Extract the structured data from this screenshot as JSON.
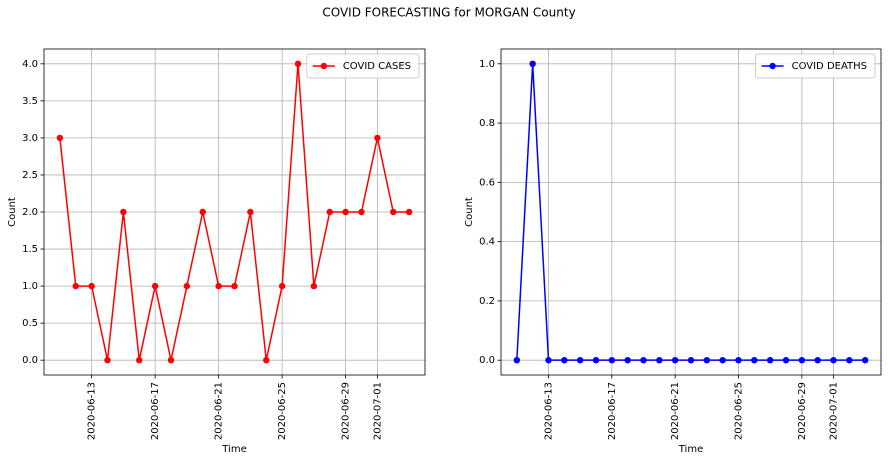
{
  "title": "COVID FORECASTING for MORGAN County",
  "chart_data": [
    {
      "type": "line",
      "xlabel": "Time",
      "ylabel": "Count",
      "x": [
        "2020-06-11",
        "2020-06-12",
        "2020-06-13",
        "2020-06-14",
        "2020-06-15",
        "2020-06-16",
        "2020-06-17",
        "2020-06-18",
        "2020-06-19",
        "2020-06-20",
        "2020-06-21",
        "2020-06-22",
        "2020-06-23",
        "2020-06-24",
        "2020-06-25",
        "2020-06-26",
        "2020-06-27",
        "2020-06-28",
        "2020-06-29",
        "2020-06-30",
        "2020-07-01",
        "2020-07-02",
        "2020-07-03"
      ],
      "series": [
        {
          "name": "COVID CASES",
          "color": "#ff0000",
          "values": [
            3,
            1,
            1,
            0,
            2,
            0,
            1,
            0,
            1,
            2,
            1,
            1,
            2,
            0,
            1,
            4,
            1,
            2,
            2,
            2,
            3,
            2,
            2
          ]
        }
      ],
      "xlim": [
        "2020-06-10",
        "2020-07-04"
      ],
      "xticks": [
        "2020-06-13",
        "2020-06-17",
        "2020-06-21",
        "2020-06-25",
        "2020-06-29",
        "2020-07-01"
      ],
      "ylim": [
        -0.2,
        4.2
      ],
      "yticks": [
        {
          "value": 0,
          "label": "0.0"
        },
        {
          "value": 0.5,
          "label": "0.5"
        },
        {
          "value": 1,
          "label": "1.0"
        },
        {
          "value": 1.5,
          "label": "1.5"
        },
        {
          "value": 2,
          "label": "2.0"
        },
        {
          "value": 2.5,
          "label": "2.5"
        },
        {
          "value": 3,
          "label": "3.0"
        },
        {
          "value": 3.5,
          "label": "3.5"
        },
        {
          "value": 4,
          "label": "4.0"
        }
      ],
      "grid": true,
      "legend": "upper right"
    },
    {
      "type": "line",
      "xlabel": "Time",
      "ylabel": "Count",
      "x": [
        "2020-06-11",
        "2020-06-12",
        "2020-06-13",
        "2020-06-14",
        "2020-06-15",
        "2020-06-16",
        "2020-06-17",
        "2020-06-18",
        "2020-06-19",
        "2020-06-20",
        "2020-06-21",
        "2020-06-22",
        "2020-06-23",
        "2020-06-24",
        "2020-06-25",
        "2020-06-26",
        "2020-06-27",
        "2020-06-28",
        "2020-06-29",
        "2020-06-30",
        "2020-07-01",
        "2020-07-02",
        "2020-07-03"
      ],
      "series": [
        {
          "name": "COVID DEATHS",
          "color": "#0000ff",
          "values": [
            0,
            1,
            0,
            0,
            0,
            0,
            0,
            0,
            0,
            0,
            0,
            0,
            0,
            0,
            0,
            0,
            0,
            0,
            0,
            0,
            0,
            0,
            0
          ]
        }
      ],
      "xlim": [
        "2020-06-10",
        "2020-07-04"
      ],
      "xticks": [
        "2020-06-13",
        "2020-06-17",
        "2020-06-21",
        "2020-06-25",
        "2020-06-29",
        "2020-07-01"
      ],
      "ylim": [
        -0.05,
        1.05
      ],
      "yticks": [
        {
          "value": 0,
          "label": "0.0"
        },
        {
          "value": 0.2,
          "label": "0.2"
        },
        {
          "value": 0.4,
          "label": "0.4"
        },
        {
          "value": 0.6,
          "label": "0.6"
        },
        {
          "value": 0.8,
          "label": "0.8"
        },
        {
          "value": 1,
          "label": "1.0"
        }
      ],
      "grid": true,
      "legend": "upper right"
    }
  ]
}
